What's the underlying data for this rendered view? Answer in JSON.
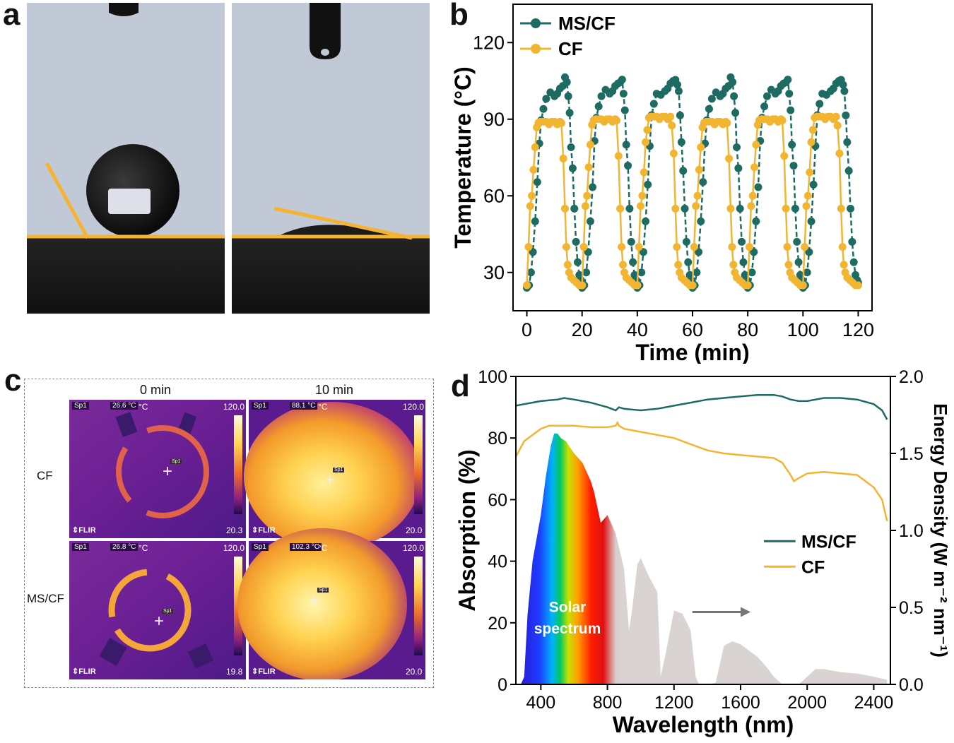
{
  "panels": {
    "a": "a",
    "b": "b",
    "c": "c",
    "d": "d"
  },
  "colors": {
    "ms_cf": "#1d6b63",
    "cf": "#f2b531",
    "contact_line": "#f5b331",
    "sky": "#c1c8d6"
  },
  "panel_c": {
    "col_labels": [
      "0 min",
      "10 min"
    ],
    "row_labels": [
      "CF",
      "MS/CF"
    ],
    "tiles": [
      {
        "sp": "Sp1",
        "temp": "26.6 °C",
        "unit": "°C",
        "max": "120.0",
        "min": "20.3",
        "brand": "FLIR",
        "marker": "Sp1"
      },
      {
        "sp": "Sp1",
        "temp": "88.1 °C",
        "unit": "°C",
        "max": "120.0",
        "min": "20.0",
        "brand": "FLIR",
        "marker": "Sp1"
      },
      {
        "sp": "Sp1",
        "temp": "26.8 °C",
        "unit": "°C",
        "max": "120.0",
        "min": "19.8",
        "brand": "FLIR",
        "marker": "Sp1"
      },
      {
        "sp": "Sp1",
        "temp": "102.3 °C",
        "unit": "°C",
        "max": "120.0",
        "min": "20.0",
        "brand": "FLIR",
        "marker": "Sp1"
      }
    ]
  },
  "chart_data": [
    {
      "type": "line",
      "title": "",
      "xlabel": "Time (min)",
      "ylabel": "Temperature (°C)",
      "xlim": [
        -5,
        125
      ],
      "ylim": [
        15,
        135
      ],
      "xticks": [
        0,
        20,
        40,
        60,
        80,
        100,
        120
      ],
      "yticks": [
        30,
        60,
        90,
        120
      ],
      "legend": "top-left",
      "series": [
        {
          "name": "MS/CF",
          "cycle_profile": [
            [
              0,
              24
            ],
            [
              0.8,
              25
            ],
            [
              1.5,
              30
            ],
            [
              2.2,
              38
            ],
            [
              3,
              50
            ],
            [
              3.8,
              64
            ],
            [
              4.5,
              80
            ],
            [
              5.2,
              90
            ],
            [
              6,
              95
            ],
            [
              7,
              99
            ],
            [
              8.5,
              100
            ],
            [
              10,
              100
            ],
            [
              11,
              101
            ],
            [
              12,
              103
            ],
            [
              13,
              104
            ],
            [
              13.8,
              105
            ],
            [
              14.5,
              104
            ],
            [
              15,
              100
            ],
            [
              15.5,
              92
            ],
            [
              16,
              80
            ],
            [
              16.6,
              70
            ],
            [
              17.2,
              55
            ],
            [
              17.8,
              42
            ],
            [
              18.4,
              34
            ],
            [
              19,
              29
            ],
            [
              19.6,
              27
            ],
            [
              20,
              26
            ]
          ]
        },
        {
          "name": "CF",
          "cycle_profile": [
            [
              0,
              25
            ],
            [
              0.6,
              40
            ],
            [
              1.2,
              56
            ],
            [
              1.8,
              60
            ],
            [
              2.4,
              70
            ],
            [
              3,
              80
            ],
            [
              3.6,
              86
            ],
            [
              4.2,
              89
            ],
            [
              5,
              90
            ],
            [
              6,
              90
            ],
            [
              7,
              90
            ],
            [
              8,
              89
            ],
            [
              9,
              90
            ],
            [
              10,
              90
            ],
            [
              11,
              89
            ],
            [
              12,
              90
            ],
            [
              12.5,
              88
            ],
            [
              13.2,
              75
            ],
            [
              13.8,
              55
            ],
            [
              14.3,
              40
            ],
            [
              14.8,
              33
            ],
            [
              15.3,
              30
            ],
            [
              16,
              28
            ],
            [
              17,
              27
            ],
            [
              18,
              26
            ],
            [
              19,
              25
            ],
            [
              20,
              25
            ]
          ]
        }
      ]
    },
    {
      "type": "line",
      "title": "",
      "xlabel": "Wavelength (nm)",
      "ylabel": "Absorption (%)",
      "y2label": "Energy Density (W m⁻² nm⁻¹)",
      "xlim": [
        250,
        2500
      ],
      "ylim": [
        0,
        100
      ],
      "y2lim": [
        0,
        2.0
      ],
      "xticks": [
        400,
        800,
        1200,
        1600,
        2000,
        2400
      ],
      "yticks": [
        0,
        20,
        40,
        60,
        80,
        100
      ],
      "y2ticks": [
        "0.0",
        "0.5",
        "1.0",
        "1.5",
        "2.0"
      ],
      "legend": "center-right",
      "annotation": [
        "Solar",
        "spectrum"
      ],
      "series": [
        {
          "name": "MS/CF",
          "axis": "left",
          "x": [
            250,
            300,
            400,
            500,
            540,
            600,
            700,
            800,
            850,
            870,
            900,
            1000,
            1100,
            1200,
            1300,
            1400,
            1500,
            1600,
            1700,
            1800,
            1850,
            1900,
            1950,
            2000,
            2100,
            2200,
            2300,
            2400,
            2450,
            2480
          ],
          "y": [
            90.5,
            91,
            92,
            92.5,
            93,
            92.5,
            91.5,
            90,
            89,
            90,
            89.5,
            89,
            89.5,
            90.5,
            91.5,
            92.5,
            93,
            93.5,
            94,
            94,
            93.5,
            92.5,
            92,
            92,
            93,
            93,
            92.5,
            91,
            89,
            86
          ]
        },
        {
          "name": "CF",
          "axis": "left",
          "x": [
            250,
            300,
            400,
            450,
            500,
            600,
            700,
            800,
            850,
            860,
            870,
            900,
            1000,
            1100,
            1200,
            1300,
            1400,
            1500,
            1600,
            1700,
            1800,
            1850,
            1900,
            1920,
            1950,
            2000,
            2100,
            2200,
            2300,
            2400,
            2450,
            2480
          ],
          "y": [
            74,
            79,
            83,
            84,
            84,
            84,
            83.5,
            83.5,
            84,
            85,
            84,
            83,
            82,
            81,
            80,
            78,
            76,
            75,
            74.5,
            74,
            73.5,
            72,
            68,
            66,
            67,
            68.5,
            69,
            68.5,
            68,
            64,
            60,
            53
          ]
        },
        {
          "name": "Solar spectrum",
          "axis": "right",
          "x": [
            280,
            300,
            320,
            350,
            400,
            430,
            460,
            480,
            500,
            520,
            550,
            600,
            650,
            700,
            720,
            760,
            800,
            850,
            900,
            930,
            950,
            980,
            1000,
            1050,
            1100,
            1120,
            1150,
            1200,
            1250,
            1300,
            1330,
            1350,
            1400,
            1450,
            1500,
            1550,
            1600,
            1650,
            1700,
            1750,
            1800,
            1850,
            1900,
            1950,
            2000,
            2050,
            2100,
            2200,
            2300,
            2400,
            2480
          ],
          "y": [
            0,
            0.05,
            0.45,
            0.8,
            1.1,
            1.35,
            1.55,
            1.63,
            1.63,
            1.6,
            1.58,
            1.5,
            1.44,
            1.32,
            1.25,
            1.05,
            1.1,
            0.98,
            0.75,
            0.35,
            0.5,
            0.78,
            0.82,
            0.7,
            0.6,
            0.05,
            0.2,
            0.48,
            0.46,
            0.35,
            0.05,
            0.0,
            0.0,
            0.01,
            0.25,
            0.28,
            0.26,
            0.22,
            0.18,
            0.12,
            0.05,
            0.0,
            0.0,
            0.0,
            0.05,
            0.1,
            0.1,
            0.08,
            0.07,
            0.05,
            0.03
          ]
        }
      ]
    }
  ]
}
